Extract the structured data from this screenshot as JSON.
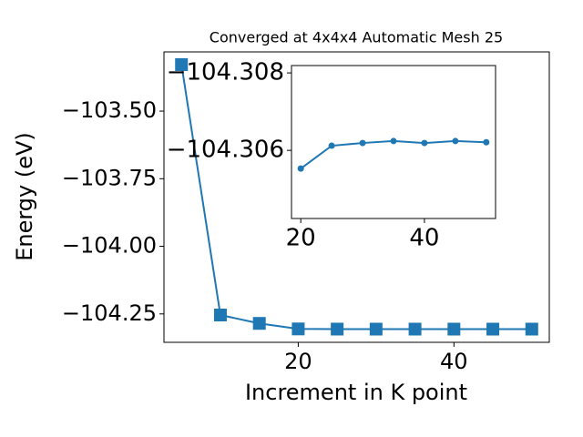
{
  "chart_data": [
    {
      "type": "line",
      "title": "Converged at 4x4x4 Automatic Mesh 25",
      "x_label": "Increment in K point",
      "y_label": "Energy (eV)",
      "x": [
        5,
        10,
        15,
        20,
        25,
        30,
        35,
        40,
        45,
        50
      ],
      "series": [
        {
          "name": "Energy",
          "color": "#1f77b4",
          "marker": "square",
          "values": [
            -103.328,
            -104.254,
            -104.285,
            -104.3055,
            -104.3061,
            -104.3062,
            -104.3062,
            -104.3062,
            -104.3062,
            -104.3062
          ]
        }
      ],
      "xlim": [
        2.75,
        52.25
      ],
      "ylim": [
        -104.355,
        -103.281
      ],
      "xticks": [
        20,
        40
      ],
      "yticks": [
        {
          "value": -103.5,
          "label": "−103.50"
        },
        {
          "value": -103.75,
          "label": "−103.75"
        },
        {
          "value": -104.0,
          "label": "−104.00"
        },
        {
          "value": -104.25,
          "label": "−104.25"
        }
      ],
      "grid": false
    },
    {
      "type": "line",
      "x": [
        20,
        25,
        30,
        35,
        40,
        45,
        50
      ],
      "series": [
        {
          "name": "Energy",
          "color": "#1f77b4",
          "marker": "circle",
          "values": [
            -104.30553,
            -104.30612,
            -104.30619,
            -104.30624,
            -104.30619,
            -104.30624,
            -104.30621
          ]
        }
      ],
      "xlim": [
        18.5,
        51.5
      ],
      "ylim": [
        -104.30424,
        -104.30819
      ],
      "xticks": [
        20,
        40
      ],
      "yticks": [
        {
          "value": -104.308,
          "label": "−104.308"
        },
        {
          "value": -104.306,
          "label": "−104.306"
        }
      ],
      "grid": false
    }
  ]
}
